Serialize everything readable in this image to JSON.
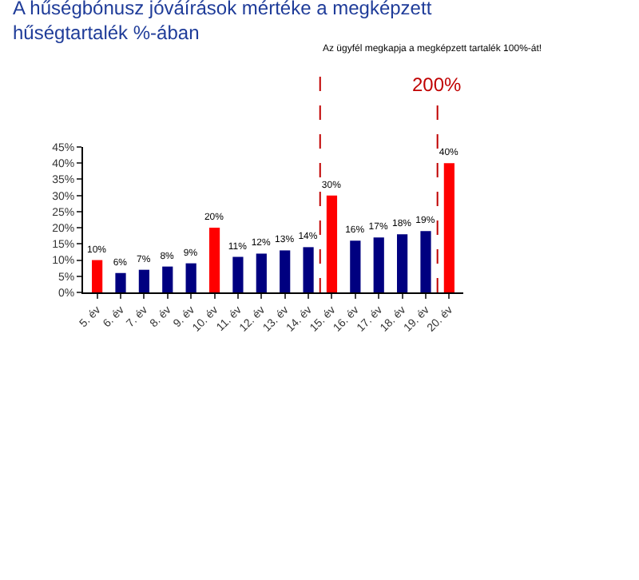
{
  "chart_data": {
    "type": "bar",
    "title": "A hűségbónusz jóváírások mértéke a megképzett\nhűségtartalék %-ában",
    "categories": [
      "5. év",
      "6. év",
      "7. év",
      "8. év",
      "9. év",
      "10. év",
      "11. év",
      "12. év",
      "13. év",
      "14. év",
      "15. év",
      "16. év",
      "17. év",
      "18. év",
      "19. év",
      "20. év"
    ],
    "values": [
      10,
      6,
      7,
      8,
      9,
      20,
      11,
      12,
      13,
      14,
      30,
      16,
      17,
      18,
      19,
      40
    ],
    "colors": [
      "#ff0000",
      "#000080",
      "#000080",
      "#000080",
      "#000080",
      "#ff0000",
      "#000080",
      "#000080",
      "#000080",
      "#000080",
      "#ff0000",
      "#000080",
      "#000080",
      "#000080",
      "#000080",
      "#ff0000"
    ],
    "value_labels": [
      "10%",
      "6%",
      "7%",
      "8%",
      "9%",
      "20%",
      "11%",
      "12%",
      "13%",
      "14%",
      "30%",
      "16%",
      "17%",
      "18%",
      "19%",
      "40%"
    ],
    "ylim": [
      0,
      45
    ],
    "yticks": [
      {
        "value": 0,
        "label": "0%"
      },
      {
        "value": 5,
        "label": "5%"
      },
      {
        "value": 10,
        "label": "10%"
      },
      {
        "value": 15,
        "label": "15%"
      },
      {
        "value": 20,
        "label": "20%"
      },
      {
        "value": 25,
        "label": "25%"
      },
      {
        "value": 30,
        "label": "30%"
      },
      {
        "value": 35,
        "label": "35%"
      },
      {
        "value": 40,
        "label": "40%"
      },
      {
        "value": 45,
        "label": "45%"
      }
    ],
    "annotations": [
      "Az ügyfél megkapja a megképzett tartalék 100%-át!",
      "200%"
    ],
    "legend": false
  }
}
